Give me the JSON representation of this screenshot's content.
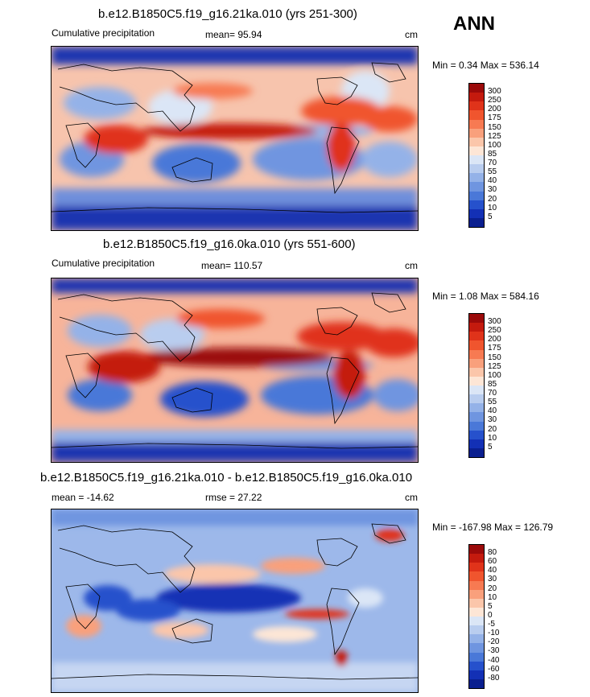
{
  "season": "ANN",
  "panels": [
    {
      "title": "b.e12.B1850C5.f19_g16.21ka.010 (yrs 251-300)",
      "left_label": "Cumulative precipitation",
      "mean_label": "mean=  95.94",
      "units": "cm",
      "minmax": "Min =   0.34 Max = 536.14",
      "colorbar_levels": [
        "300",
        "250",
        "200",
        "175",
        "150",
        "125",
        "100",
        "85",
        "70",
        "55",
        "40",
        "30",
        "20",
        "10",
        "5"
      ]
    },
    {
      "title": "b.e12.B1850C5.f19_g16.0ka.010 (yrs 551-600)",
      "left_label": "Cumulative precipitation",
      "mean_label": "mean= 110.57",
      "units": "cm",
      "minmax": "Min =   1.08 Max = 584.16",
      "colorbar_levels": [
        "300",
        "250",
        "200",
        "175",
        "150",
        "125",
        "100",
        "85",
        "70",
        "55",
        "40",
        "30",
        "20",
        "10",
        "5"
      ]
    },
    {
      "title": "b.e12.B1850C5.f19_g16.21ka.010 - b.e12.B1850C5.f19_g16.0ka.010",
      "left_label": "mean = -14.62",
      "mean_label": "rmse =  27.22",
      "units": "cm",
      "minmax": "Min = -167.98 Max = 126.79",
      "colorbar_levels": [
        "80",
        "60",
        "40",
        "30",
        "20",
        "10",
        "5",
        "0",
        "-5",
        "-10",
        "-20",
        "-30",
        "-40",
        "-60",
        "-80"
      ]
    }
  ],
  "chart_data": [
    {
      "type": "heatmap",
      "title": "b.e12.B1850C5.f19_g16.21ka.010 (yrs 251-300)",
      "variable": "Cumulative precipitation",
      "mean": 95.94,
      "min": 0.34,
      "max": 536.14,
      "units": "cm",
      "levels": [
        5,
        10,
        20,
        30,
        40,
        55,
        70,
        85,
        100,
        125,
        150,
        175,
        200,
        250,
        300
      ]
    },
    {
      "type": "heatmap",
      "title": "b.e12.B1850C5.f19_g16.0ka.010 (yrs 551-600)",
      "variable": "Cumulative precipitation",
      "mean": 110.57,
      "min": 1.08,
      "max": 584.16,
      "units": "cm",
      "levels": [
        5,
        10,
        20,
        30,
        40,
        55,
        70,
        85,
        100,
        125,
        150,
        175,
        200,
        250,
        300
      ]
    },
    {
      "type": "heatmap",
      "title": "b.e12.B1850C5.f19_g16.21ka.010 - b.e12.B1850C5.f19_g16.0ka.010",
      "mean": -14.62,
      "rmse": 27.22,
      "min": -167.98,
      "max": 126.79,
      "units": "cm",
      "levels": [
        -80,
        -60,
        -40,
        -30,
        -20,
        -10,
        -5,
        0,
        5,
        10,
        20,
        30,
        40,
        60,
        80
      ]
    }
  ],
  "colors": {
    "scale": [
      "#9b0a0a",
      "#c41a0e",
      "#e0331a",
      "#f0552e",
      "#f77a52",
      "#f9a07c",
      "#fbc6aa",
      "#fde6d6",
      "#dbe6f6",
      "#b9cdef",
      "#94b2e8",
      "#6f95e0",
      "#4a78d8",
      "#2651cc",
      "#1330b5",
      "#0a1f8f"
    ]
  }
}
